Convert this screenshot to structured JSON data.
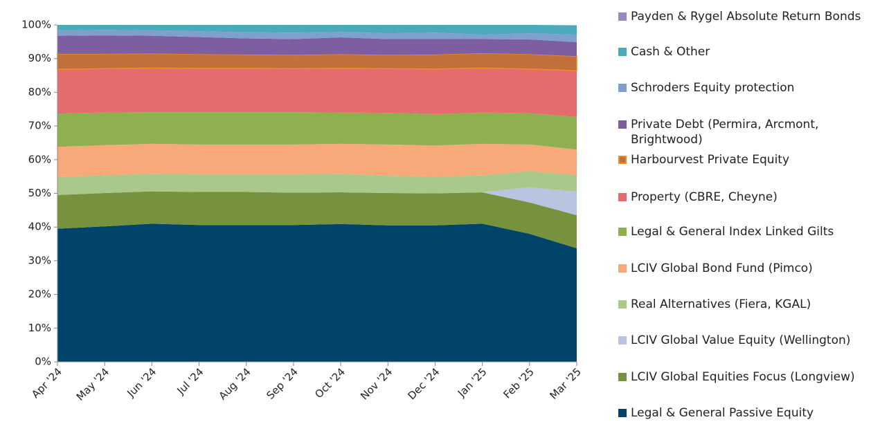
{
  "chart_data": {
    "type": "stacked_area",
    "categories": [
      "Apr '24",
      "May '24",
      "Jun '24",
      "Jul '24",
      "Aug '24",
      "Sep '24",
      "Oct '24",
      "Nov '24",
      "Dec '24",
      "Jan '25",
      "Feb '25",
      "Mar '25"
    ],
    "ylim": [
      0,
      100
    ],
    "yticks": [
      {
        "value": 0,
        "label": "0%"
      },
      {
        "value": 10,
        "label": "10%"
      },
      {
        "value": 20,
        "label": "20%"
      },
      {
        "value": 30,
        "label": "30%"
      },
      {
        "value": 40,
        "label": "40%"
      },
      {
        "value": 50,
        "label": "50%"
      },
      {
        "value": 60,
        "label": "60%"
      },
      {
        "value": 70,
        "label": "70%"
      },
      {
        "value": 80,
        "label": "80%"
      },
      {
        "value": 90,
        "label": "90%"
      },
      {
        "value": 100,
        "label": "100%"
      }
    ],
    "series": [
      {
        "name": "Legal & General Passive Equity",
        "color": "#00446a",
        "values": [
          39.5,
          40.2,
          41,
          40.6,
          40.6,
          40.6,
          40.9,
          40.5,
          40.5,
          41,
          38,
          33.7
        ]
      },
      {
        "name": "LCIV Global Equities Focus (Longview)",
        "color": "#76923c",
        "values": [
          10,
          9.9,
          9.6,
          9.8,
          9.8,
          9.6,
          9.4,
          9.6,
          9.5,
          9.3,
          9.3,
          9.8
        ]
      },
      {
        "name": "LCIV Global Value Equity (Wellington)",
        "color": "#b8c4e0",
        "values": [
          0,
          0,
          0,
          0,
          0,
          0,
          0,
          0,
          0,
          0,
          4.5,
          7
        ]
      },
      {
        "name": "Real Alternatives (Fiera, KGAL)",
        "color": "#a9c88a",
        "values": [
          5.3,
          5.3,
          5.1,
          5.2,
          5.2,
          5.4,
          5.4,
          5.1,
          5,
          5,
          4.8,
          4.9
        ]
      },
      {
        "name": "LCIV Global Bond Fund (Pimco)",
        "color": "#f7a97a",
        "values": [
          9,
          8.9,
          9,
          8.9,
          8.9,
          8.9,
          9,
          9.3,
          9.2,
          9.4,
          7.9,
          7.6
        ]
      },
      {
        "name": "Legal & General Index Linked Gilts",
        "color": "#8fb050",
        "values": [
          9.9,
          9.7,
          9.4,
          9.6,
          9.6,
          9.6,
          9.3,
          9.4,
          9.3,
          9.3,
          9.3,
          9.7
        ]
      },
      {
        "name": "Property (CBRE, Cheyne)",
        "color": "#e46c6c",
        "values": [
          13.1,
          13,
          13.1,
          13,
          13,
          12.9,
          13.1,
          13.1,
          13.4,
          13.2,
          13.1,
          13.7
        ]
      },
      {
        "name": "Harbourvest Private Equity",
        "color": "#c0703a",
        "edgecolor": "#f28c28",
        "values": [
          4.6,
          4.4,
          4.3,
          4.2,
          4.1,
          4.1,
          4.2,
          4.1,
          4.3,
          4.4,
          4.4,
          4.3
        ]
      },
      {
        "name": "Private Debt (Permira, Arcmont, Brightwood)",
        "color": "#7d5ea0",
        "values": [
          5.4,
          5.5,
          5.3,
          5.1,
          4.8,
          4.7,
          5,
          4.7,
          4.6,
          4.2,
          4.4,
          4.2
        ]
      },
      {
        "name": "Schroders Equity protection",
        "color": "#7fa0cc",
        "values": [
          1.6,
          1.6,
          1.6,
          1.7,
          1.8,
          1.9,
          1.6,
          1.7,
          1.9,
          1.3,
          1.8,
          2.2
        ]
      },
      {
        "name": "Cash & Other",
        "color": "#4aaabb",
        "values": [
          1.6,
          1.5,
          1.6,
          1.9,
          2.2,
          2.3,
          2.1,
          2.5,
          2.3,
          2.9,
          2.5,
          2.8
        ]
      },
      {
        "name": "Payden & Rygel Absolute Return Bonds",
        "color": "#9a88c0",
        "values": [
          0,
          0,
          0,
          0,
          0,
          0,
          0,
          0,
          0,
          0,
          0,
          0
        ]
      }
    ]
  }
}
